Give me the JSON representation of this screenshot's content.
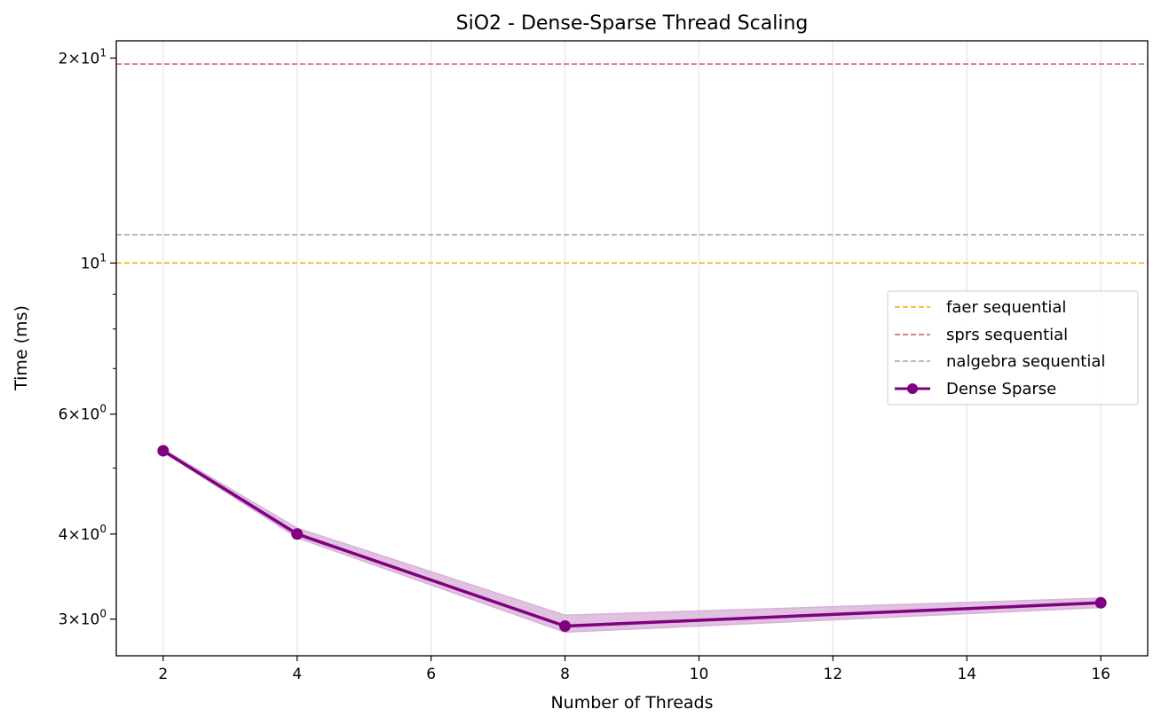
{
  "chart_data": {
    "type": "line",
    "title": "SiO2 - Dense-Sparse Thread Scaling",
    "xlabel": "Number of Threads",
    "ylabel": "Time (ms)",
    "xlim": [
      1.3,
      16.7
    ],
    "ylim": [
      2.65,
      21.2
    ],
    "yscale": "log",
    "grid": "vertical",
    "legend_position": "center-right",
    "x_ticks": [
      2,
      4,
      6,
      8,
      10,
      12,
      14,
      16
    ],
    "x_tick_labels": [
      "2",
      "4",
      "6",
      "8",
      "10",
      "12",
      "14",
      "16"
    ],
    "y_ticks": [
      {
        "value": 3,
        "base": "3",
        "exp": "0"
      },
      {
        "value": 4,
        "base": "4",
        "exp": "0"
      },
      {
        "value": 6,
        "base": "6",
        "exp": "0"
      },
      {
        "value": 10,
        "base": "",
        "exp": "1"
      },
      {
        "value": 20,
        "base": "2",
        "exp": "1"
      }
    ],
    "reference_lines": [
      {
        "name": "faer sequential",
        "value": 10.0,
        "color": "#ffa500"
      },
      {
        "name": "sprs sequential",
        "value": 19.6,
        "color": "#cd5c5c"
      },
      {
        "name": "nalgebra sequential",
        "value": 11.0,
        "color": "#a0a0a0"
      }
    ],
    "series": [
      {
        "name": "Dense Sparse",
        "color": "#800080",
        "band_color": "#d8b2d8",
        "x": [
          2,
          4,
          8,
          16
        ],
        "y": [
          5.3,
          4.0,
          2.93,
          3.17
        ],
        "lower": [
          5.28,
          3.95,
          2.87,
          3.12
        ],
        "upper": [
          5.33,
          4.08,
          3.04,
          3.22
        ]
      }
    ]
  }
}
